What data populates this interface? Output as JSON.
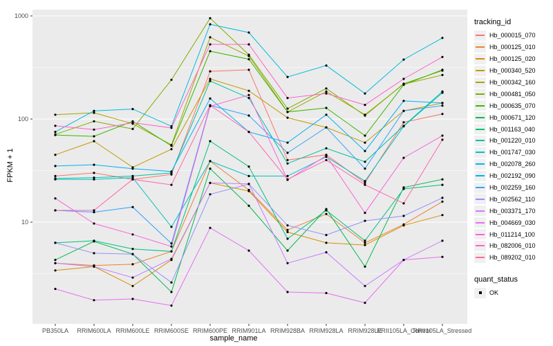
{
  "figure": {
    "x_axis_title": "sample_name",
    "y_axis_title": "FPKM + 1",
    "legend_title": "tracking_id",
    "quant_legend_title": "quant_status",
    "quant_ok_label": "OK"
  },
  "chart_data": {
    "type": "line",
    "title": "",
    "xlabel": "sample_name",
    "ylabel": "FPKM + 1",
    "y_scale": "log10",
    "ylim": [
      1.03,
      1150
    ],
    "y_major_ticks": [
      10,
      100,
      1000
    ],
    "y_minor_ticks": [
      3.162,
      31.62,
      316.2
    ],
    "y_tick_labels": [
      "10",
      "100",
      "1000"
    ],
    "grid": "white major and minor gridlines on gray panel",
    "panel_background": "#EBEBEB",
    "gridline_color": "#FFFFFF",
    "point_color": "#000000",
    "tick_label_color": "#4D4D4D",
    "legend_position": "right",
    "legend_title": "tracking_id",
    "quant_status": {
      "title": "quant_status",
      "items": [
        "OK"
      ]
    },
    "categories": [
      "PB350LA",
      "RRIM600LA",
      "RRIM600LE",
      "RRIM600SE",
      "RRIM600PE",
      "RRIM901LA",
      "RRIM928BA",
      "RRIM928LA",
      "RRIM928LE",
      "RRII105LA_Control",
      "RRII105LA_Stressed"
    ],
    "series": [
      {
        "name": "Hb_000015_070",
        "color": "#F8766D",
        "values": [
          28,
          30,
          26,
          29,
          290,
          300,
          40,
          45,
          24,
          93,
          112
        ]
      },
      {
        "name": "Hb_000125_010",
        "color": "#EA8331",
        "values": [
          4.0,
          3.8,
          3.9,
          5.2,
          39,
          20.5,
          8.4,
          12,
          6.3,
          9.5,
          15.8
        ]
      },
      {
        "name": "Hb_000125_020",
        "color": "#D89000",
        "values": [
          3.4,
          3.7,
          2.4,
          4.3,
          24,
          20,
          8.0,
          6.3,
          6.0,
          9.3,
          11.7
        ]
      },
      {
        "name": "Hb_000340_520",
        "color": "#C09B00",
        "values": [
          45,
          61,
          34,
          51,
          245,
          188,
          103,
          83,
          59,
          120,
          143
        ]
      },
      {
        "name": "Hb_000342_160",
        "color": "#A3A500",
        "values": [
          110,
          115,
          90,
          56,
          620,
          408,
          117,
          185,
          110,
          218,
          267
        ]
      },
      {
        "name": "Hb_000481_050",
        "color": "#7CAE00",
        "values": [
          71,
          95,
          80,
          240,
          950,
          420,
          126,
          198,
          108,
          220,
          295
        ]
      },
      {
        "name": "Hb_000635_070",
        "color": "#39B600",
        "values": [
          70,
          68,
          95,
          55,
          455,
          380,
          117,
          128,
          69,
          215,
          300
        ]
      },
      {
        "name": "Hb_000671_120",
        "color": "#00BB4E",
        "values": [
          4.3,
          6.5,
          4.9,
          2.1,
          33,
          14.4,
          5.3,
          13.4,
          3.7,
          21.7,
          26
        ]
      },
      {
        "name": "Hb_001163_040",
        "color": "#00BF7D",
        "values": [
          6.3,
          6.6,
          5.5,
          5.2,
          61,
          34.6,
          6.9,
          13,
          6.6,
          21,
          23
        ]
      },
      {
        "name": "Hb_001220_010",
        "color": "#00C1A3",
        "values": [
          26.5,
          27,
          28,
          30,
          234,
          160,
          37,
          52,
          38.5,
          86,
          185
        ]
      },
      {
        "name": "Hb_001747_030",
        "color": "#00BFC4",
        "values": [
          26,
          26,
          27,
          9,
          39,
          28,
          28,
          43,
          25,
          85,
          180
        ]
      },
      {
        "name": "Hb_002078_260",
        "color": "#00BAE0",
        "values": [
          75,
          120,
          125,
          85,
          830,
          690,
          256,
          330,
          177,
          377,
          612
        ]
      },
      {
        "name": "Hb_002192_090",
        "color": "#00B0F6",
        "values": [
          35,
          36,
          33,
          31,
          158,
          75,
          59,
          110,
          49,
          150,
          143
        ]
      },
      {
        "name": "Hb_002259_160",
        "color": "#35A2FF",
        "values": [
          13,
          12.5,
          14,
          6.2,
          136,
          108,
          47,
          83,
          33,
          120,
          135
        ]
      },
      {
        "name": "Hb_002562_110",
        "color": "#9590FF",
        "values": [
          6.3,
          5.0,
          4.9,
          2.6,
          18.6,
          23.4,
          9.3,
          7.5,
          10.3,
          11.5,
          17.2
        ]
      },
      {
        "name": "Hb_003371_170",
        "color": "#C77CFF",
        "values": [
          4.0,
          3.7,
          2.9,
          4.4,
          24,
          23.5,
          4.0,
          5.1,
          2.4,
          4.3,
          6.6
        ]
      },
      {
        "name": "Hb_004669_030",
        "color": "#E76BF3",
        "values": [
          2.25,
          1.75,
          1.8,
          1.55,
          8.8,
          5.3,
          2.1,
          2.05,
          1.65,
          4.3,
          4.6
        ]
      },
      {
        "name": "Hb_011214_100",
        "color": "#FA62DB",
        "values": [
          17,
          9.7,
          7.6,
          5.8,
          133,
          171,
          25.7,
          44,
          12.3,
          42,
          69
        ]
      },
      {
        "name": "Hb_082006_010",
        "color": "#FF61CC",
        "values": [
          86,
          79,
          92,
          82,
          530,
          530,
          160,
          177,
          137,
          245,
          400
        ]
      },
      {
        "name": "Hb_089202_010",
        "color": "#FF65AE",
        "values": [
          13,
          13,
          26,
          23,
          136,
          75,
          26,
          40,
          23,
          15.2,
          63
        ]
      }
    ]
  }
}
